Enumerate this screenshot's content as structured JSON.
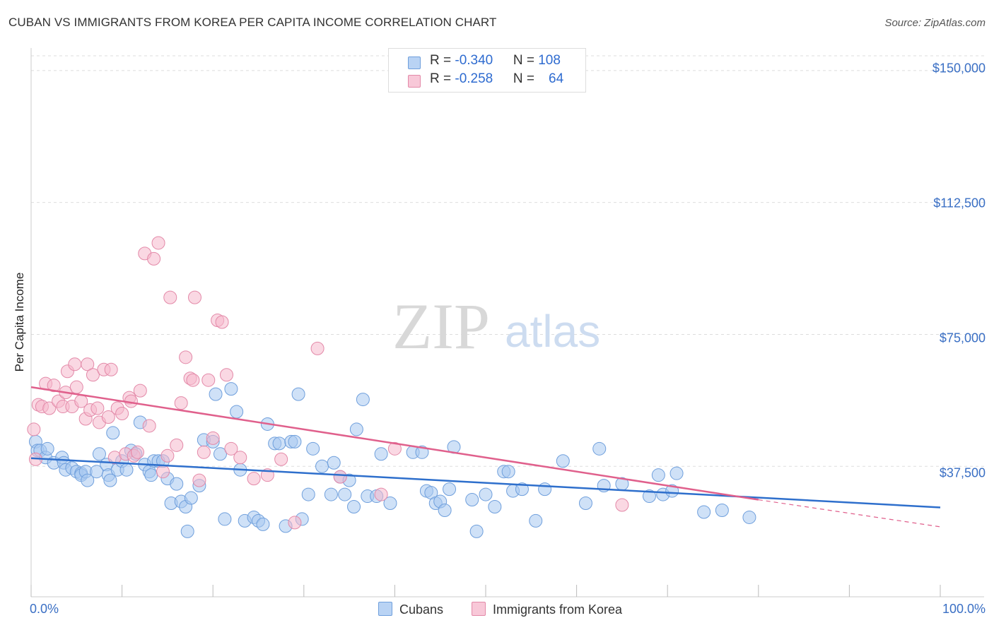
{
  "title": "CUBAN VS IMMIGRANTS FROM KOREA PER CAPITA INCOME CORRELATION CHART",
  "source": "Source: ZipAtlas.com",
  "watermark": {
    "zip": "ZIP",
    "atlas": "atlas"
  },
  "legend_top": {
    "rows": [
      {
        "r_label": "R = ",
        "r_value": "-0.340",
        "n_label": "N = ",
        "n_value": "108",
        "color": "#a8c8f0"
      },
      {
        "r_label": "R = ",
        "r_value": "-0.258",
        "n_label": "N = ",
        "n_value": "64",
        "color": "#f5b8cc"
      }
    ]
  },
  "legend_bottom": [
    "Cubans",
    "Immigrants from Korea"
  ],
  "chart_data": {
    "type": "scatter",
    "title": "CUBAN VS IMMIGRANTS FROM KOREA PER CAPITA INCOME CORRELATION CHART",
    "xlabel": "",
    "ylabel": "Per Capita Income",
    "xlim": [
      0,
      100
    ],
    "ylim": [
      0,
      155000
    ],
    "x_tick_labels": [
      "0.0%",
      "100.0%"
    ],
    "y_ticks": [
      37500,
      75000,
      112500,
      150000
    ],
    "y_tick_labels": [
      "$37,500",
      "$75,000",
      "$112,500",
      "$150,000"
    ],
    "grid": true,
    "legend_position": "top-center",
    "series": [
      {
        "name": "Cubans",
        "color": "#a8c8f0",
        "stroke": "#6f9fdc",
        "trend": {
          "x0": 0,
          "y0": 39800,
          "x1": 100,
          "y1": 25800,
          "color": "#2e6fcc"
        },
        "points": [
          [
            0.5,
            44500
          ],
          [
            0.7,
            42000
          ],
          [
            1.0,
            42000
          ],
          [
            1.6,
            40000
          ],
          [
            1.8,
            42500
          ],
          [
            2.5,
            38500
          ],
          [
            3.4,
            40000
          ],
          [
            3.6,
            38500
          ],
          [
            3.8,
            36500
          ],
          [
            4.5,
            37000
          ],
          [
            5.0,
            36000
          ],
          [
            5.5,
            35500
          ],
          [
            5.5,
            35000
          ],
          [
            6.0,
            36000
          ],
          [
            6.2,
            33500
          ],
          [
            7.2,
            36000
          ],
          [
            7.5,
            41000
          ],
          [
            8.3,
            38000
          ],
          [
            8.5,
            35000
          ],
          [
            8.7,
            33500
          ],
          [
            9.0,
            47000
          ],
          [
            9.5,
            36500
          ],
          [
            10.0,
            39000
          ],
          [
            10.5,
            36500
          ],
          [
            11.0,
            42000
          ],
          [
            11.5,
            41000
          ],
          [
            12.0,
            50000
          ],
          [
            12.5,
            38000
          ],
          [
            13.0,
            36000
          ],
          [
            13.2,
            35000
          ],
          [
            13.5,
            39000
          ],
          [
            14.0,
            39000
          ],
          [
            14.5,
            39000
          ],
          [
            15.0,
            34000
          ],
          [
            15.4,
            27000
          ],
          [
            16.0,
            32500
          ],
          [
            16.5,
            27500
          ],
          [
            17.0,
            26000
          ],
          [
            17.2,
            19000
          ],
          [
            17.6,
            28500
          ],
          [
            18.5,
            32000
          ],
          [
            19.0,
            45000
          ],
          [
            20.0,
            44500
          ],
          [
            20.3,
            58000
          ],
          [
            20.8,
            41000
          ],
          [
            21.3,
            22500
          ],
          [
            22.0,
            59500
          ],
          [
            22.6,
            53000
          ],
          [
            23.0,
            36500
          ],
          [
            23.5,
            22000
          ],
          [
            24.5,
            23000
          ],
          [
            25.0,
            22000
          ],
          [
            25.5,
            21000
          ],
          [
            26.0,
            49500
          ],
          [
            26.8,
            44000
          ],
          [
            27.3,
            44000
          ],
          [
            28.0,
            20500
          ],
          [
            28.6,
            44500
          ],
          [
            29.0,
            44500
          ],
          [
            29.4,
            58000
          ],
          [
            29.8,
            22500
          ],
          [
            30.5,
            29500
          ],
          [
            31.0,
            42500
          ],
          [
            32.0,
            37500
          ],
          [
            33.0,
            29500
          ],
          [
            33.3,
            38500
          ],
          [
            34.0,
            34500
          ],
          [
            34.5,
            29500
          ],
          [
            35.0,
            33500
          ],
          [
            35.5,
            26000
          ],
          [
            35.8,
            48000
          ],
          [
            36.5,
            56500
          ],
          [
            37.0,
            29000
          ],
          [
            38.0,
            29000
          ],
          [
            38.5,
            41000
          ],
          [
            39.5,
            27000
          ],
          [
            42.0,
            41500
          ],
          [
            43.0,
            41500
          ],
          [
            43.5,
            30500
          ],
          [
            44.0,
            30000
          ],
          [
            44.5,
            27000
          ],
          [
            45.0,
            27500
          ],
          [
            45.5,
            25000
          ],
          [
            46.0,
            31000
          ],
          [
            46.5,
            43000
          ],
          [
            48.5,
            28000
          ],
          [
            49.0,
            19000
          ],
          [
            50.0,
            29500
          ],
          [
            51.0,
            26000
          ],
          [
            52.0,
            36000
          ],
          [
            52.5,
            36000
          ],
          [
            53.0,
            30500
          ],
          [
            54.0,
            31000
          ],
          [
            55.5,
            22000
          ],
          [
            56.5,
            31000
          ],
          [
            58.5,
            39000
          ],
          [
            61.0,
            27000
          ],
          [
            62.5,
            42500
          ],
          [
            63.0,
            32000
          ],
          [
            65.0,
            32500
          ],
          [
            68.0,
            29000
          ],
          [
            69.0,
            35000
          ],
          [
            69.5,
            29500
          ],
          [
            70.5,
            30500
          ],
          [
            71.0,
            35500
          ],
          [
            74.0,
            24500
          ],
          [
            76.0,
            25000
          ],
          [
            79.0,
            23000
          ]
        ]
      },
      {
        "name": "Immigrants from Korea",
        "color": "#f5b8cc",
        "stroke": "#e389a8",
        "trend": {
          "x0": 0,
          "y0": 60000,
          "x1": 80,
          "y1": 28000,
          "x2": 100,
          "y2": 20300,
          "color": "#e0608c"
        },
        "points": [
          [
            0.3,
            48000
          ],
          [
            0.5,
            39500
          ],
          [
            0.8,
            55000
          ],
          [
            1.2,
            54500
          ],
          [
            1.6,
            61000
          ],
          [
            2.0,
            54000
          ],
          [
            2.5,
            60500
          ],
          [
            3.0,
            56000
          ],
          [
            3.5,
            54500
          ],
          [
            3.8,
            58500
          ],
          [
            4.0,
            64500
          ],
          [
            4.5,
            54500
          ],
          [
            4.8,
            66500
          ],
          [
            5.0,
            60000
          ],
          [
            5.5,
            56000
          ],
          [
            6.0,
            51000
          ],
          [
            6.2,
            66500
          ],
          [
            6.5,
            53500
          ],
          [
            6.8,
            63500
          ],
          [
            7.3,
            54000
          ],
          [
            7.5,
            50000
          ],
          [
            8.0,
            65000
          ],
          [
            8.5,
            51500
          ],
          [
            8.8,
            65000
          ],
          [
            9.2,
            40000
          ],
          [
            9.5,
            54000
          ],
          [
            10.0,
            52500
          ],
          [
            10.4,
            41000
          ],
          [
            10.8,
            57000
          ],
          [
            11.0,
            56000
          ],
          [
            11.3,
            40500
          ],
          [
            11.7,
            41500
          ],
          [
            12.0,
            59000
          ],
          [
            12.5,
            98000
          ],
          [
            13.0,
            49000
          ],
          [
            13.5,
            96500
          ],
          [
            14.0,
            101000
          ],
          [
            14.5,
            36000
          ],
          [
            15.0,
            40500
          ],
          [
            15.3,
            85500
          ],
          [
            16.0,
            43500
          ],
          [
            16.5,
            55500
          ],
          [
            17.0,
            68500
          ],
          [
            17.5,
            62500
          ],
          [
            17.8,
            62000
          ],
          [
            18.0,
            85500
          ],
          [
            18.5,
            33500
          ],
          [
            19.0,
            41500
          ],
          [
            19.5,
            62000
          ],
          [
            20.0,
            45500
          ],
          [
            20.5,
            79000
          ],
          [
            21.0,
            78500
          ],
          [
            21.5,
            63500
          ],
          [
            22.0,
            42500
          ],
          [
            23.0,
            40000
          ],
          [
            24.5,
            34000
          ],
          [
            26.0,
            35000
          ],
          [
            27.5,
            39500
          ],
          [
            29.0,
            21500
          ],
          [
            31.5,
            71000
          ],
          [
            34.0,
            34500
          ],
          [
            38.5,
            29500
          ],
          [
            40.0,
            42500
          ],
          [
            65.0,
            26500
          ]
        ]
      }
    ]
  }
}
